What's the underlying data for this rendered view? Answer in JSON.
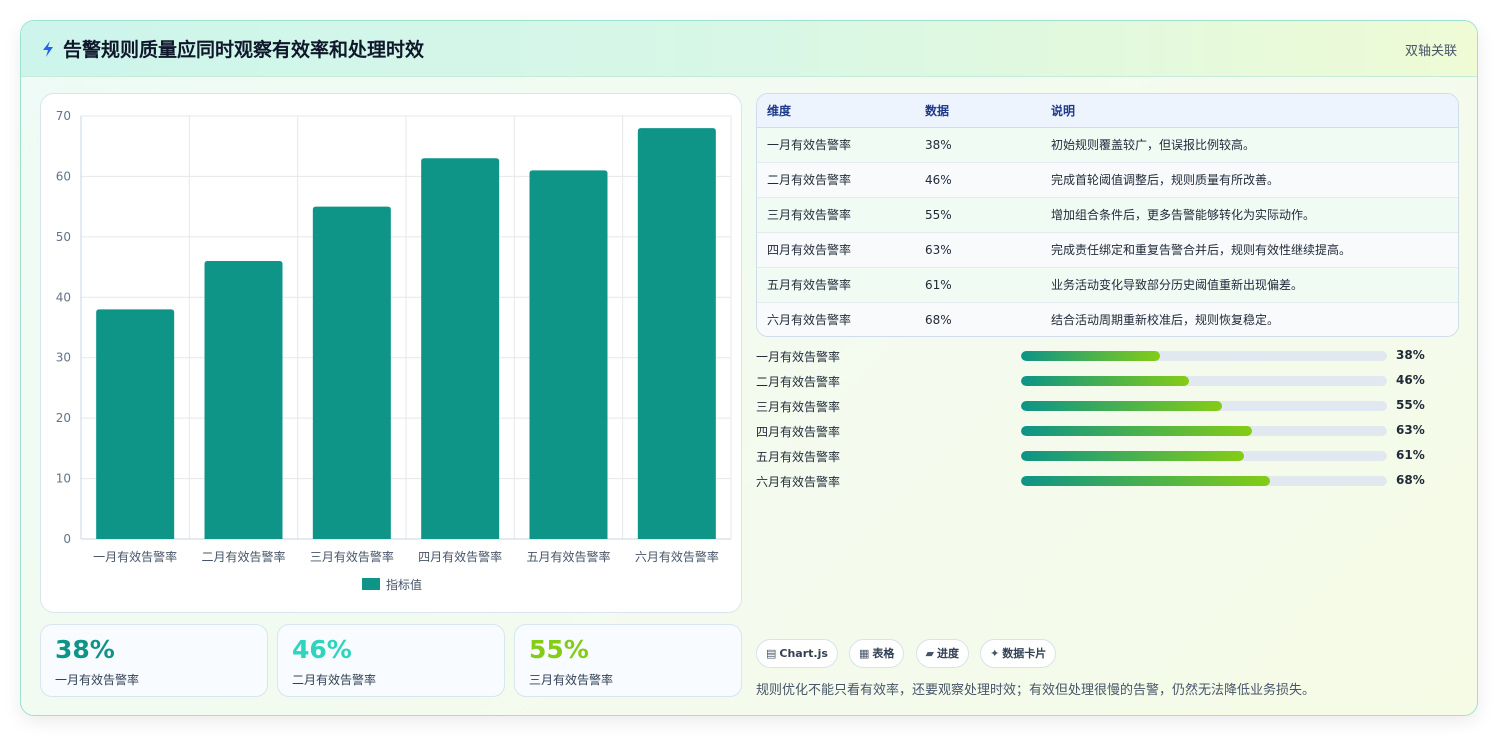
{
  "header": {
    "title": "告警规则质量应同时观察有效率和处理时效",
    "tag": "双轴关联",
    "icon": "lightning-icon"
  },
  "chart_data": {
    "type": "bar",
    "categories": [
      "一月有效告警率",
      "二月有效告警率",
      "三月有效告警率",
      "四月有效告警率",
      "五月有效告警率",
      "六月有效告警率"
    ],
    "series": [
      {
        "name": "指标值",
        "values": [
          38,
          46,
          55,
          63,
          61,
          68
        ]
      }
    ],
    "ylim": [
      0,
      70
    ],
    "yticks": [
      0,
      10,
      20,
      30,
      40,
      50,
      60,
      70
    ],
    "grid": true,
    "legend": "bottom",
    "bar_color": "#0f9488"
  },
  "kpis": [
    {
      "value": "38%",
      "label": "一月有效告警率",
      "color": "#0f9488"
    },
    {
      "value": "46%",
      "label": "二月有效告警率",
      "color": "#2dd4bf"
    },
    {
      "value": "55%",
      "label": "三月有效告警率",
      "color": "#84cc16"
    }
  ],
  "table": {
    "headers": [
      "维度",
      "数据",
      "说明"
    ],
    "rows": [
      [
        "一月有效告警率",
        "38%",
        "初始规则覆盖较广，但误报比例较高。"
      ],
      [
        "二月有效告警率",
        "46%",
        "完成首轮阈值调整后，规则质量有所改善。"
      ],
      [
        "三月有效告警率",
        "55%",
        "增加组合条件后，更多告警能够转化为实际动作。"
      ],
      [
        "四月有效告警率",
        "63%",
        "完成责任绑定和重复告警合并后，规则有效性继续提高。"
      ],
      [
        "五月有效告警率",
        "61%",
        "业务活动变化导致部分历史阈值重新出现偏差。"
      ],
      [
        "六月有效告警率",
        "68%",
        "结合活动周期重新校准后，规则恢复稳定。"
      ]
    ]
  },
  "progress": [
    {
      "label": "一月有效告警率",
      "value": 38,
      "text": "38%"
    },
    {
      "label": "二月有效告警率",
      "value": 46,
      "text": "46%"
    },
    {
      "label": "三月有效告警率",
      "value": 55,
      "text": "55%"
    },
    {
      "label": "四月有效告警率",
      "value": 63,
      "text": "63%"
    },
    {
      "label": "五月有效告警率",
      "value": 61,
      "text": "61%"
    },
    {
      "label": "六月有效告警率",
      "value": 68,
      "text": "68%"
    }
  ],
  "chips": [
    {
      "icon": "▤",
      "icon_name": "chart-icon",
      "label": "Chart.js"
    },
    {
      "icon": "▦",
      "icon_name": "table-icon",
      "label": "表格"
    },
    {
      "icon": "▰",
      "icon_name": "progress-icon",
      "label": "进度"
    },
    {
      "icon": "✦",
      "icon_name": "card-icon",
      "label": "数据卡片"
    }
  ],
  "footer": "规则优化不能只看有效率，还要观察处理时效；有效但处理很慢的告警，仍然无法降低业务损失。"
}
